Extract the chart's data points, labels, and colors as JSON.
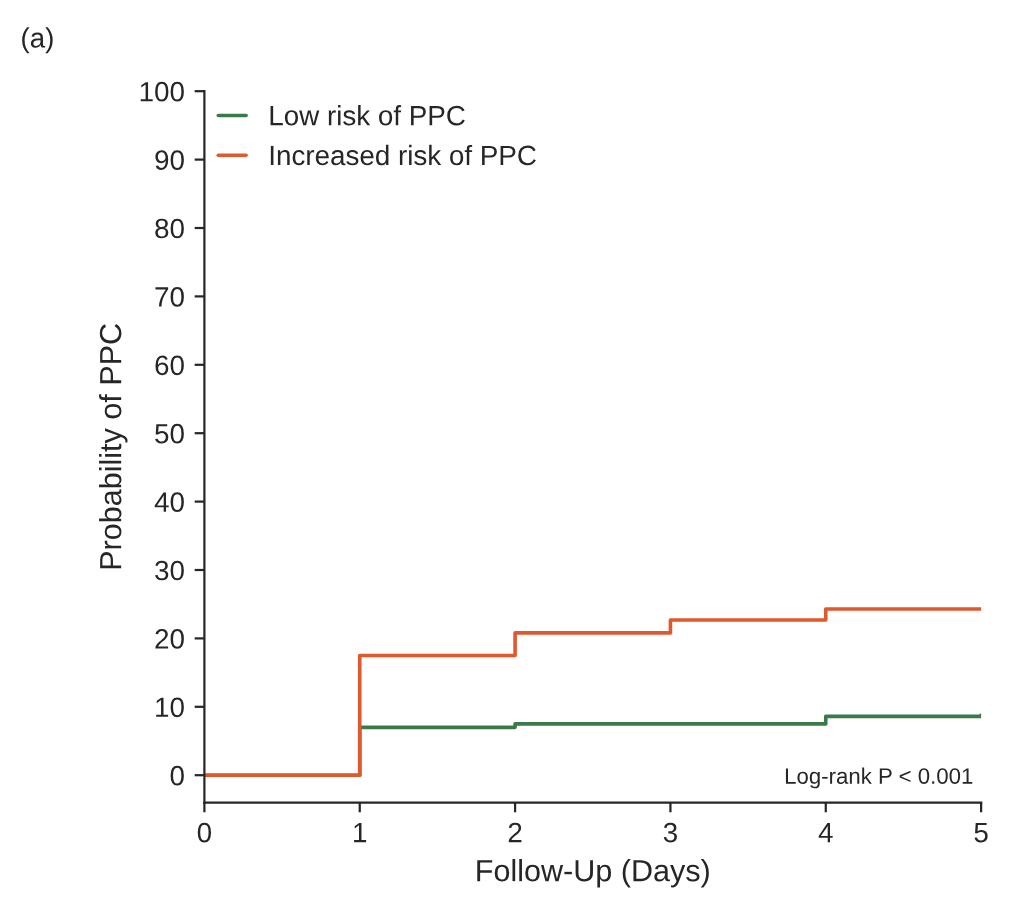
{
  "chart_data": {
    "type": "step",
    "xlabel": "Follow-Up (Days)",
    "ylabel": "Probability of PPC",
    "x": [
      0,
      1,
      2,
      3,
      4,
      5
    ],
    "series": [
      {
        "name": "Low risk of PPC",
        "color": "#3a7a4a",
        "values": [
          0,
          7,
          7.5,
          7.5,
          8.6,
          8.8
        ]
      },
      {
        "name": "Increased risk of PPC",
        "color": "#e0582e",
        "values": [
          0,
          17.5,
          20.8,
          22.7,
          24.3,
          24.3
        ]
      }
    ],
    "xlim": [
      0,
      5
    ],
    "xticks": [
      0,
      1,
      2,
      3,
      4,
      5
    ],
    "ylim": [
      -4,
      100
    ],
    "yticks": [
      0,
      10,
      20,
      30,
      40,
      50,
      60,
      70,
      80,
      90,
      100
    ],
    "annotations": [
      "(a)",
      "Log-rank P < 0.001"
    ],
    "legend": "top left",
    "grid": false
  }
}
